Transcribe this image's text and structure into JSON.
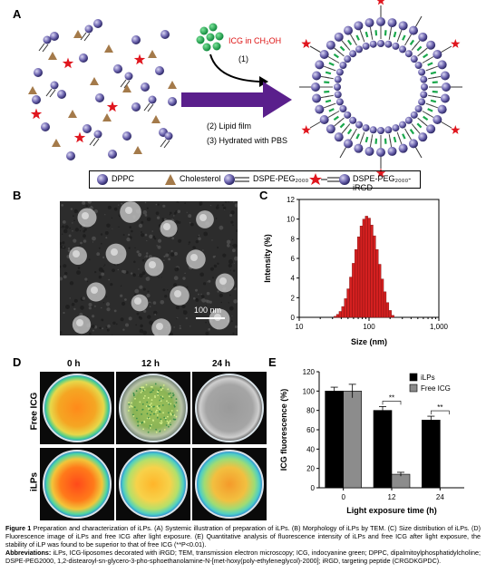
{
  "panels": {
    "a": "A",
    "b": "B",
    "c": "C",
    "d": "D",
    "e": "E"
  },
  "scheme": {
    "icg_label": "ICG in CH₃OH",
    "step1": "(1)",
    "step2": "(2) Lipid film",
    "step3": "(3) Hydrated with PBS",
    "legend": {
      "dppc": "DPPC",
      "cholesterol": "Cholesterol",
      "dspe_peg": "DSPE-PEG₂₀₀₀",
      "dspe_peg_irgd": "DSPE-PEG₂₀₀₀-iRGD"
    }
  },
  "tem": {
    "scale_bar": "100 nm"
  },
  "chart_c": {
    "type": "bar",
    "xlabel": "Size (nm)",
    "ylabel": "Intensity (%)",
    "xscale": "log",
    "xlim": [
      10,
      1000
    ],
    "ylim": [
      0,
      12
    ],
    "xticks": [
      "10",
      "100",
      "1,000"
    ],
    "yticks": [
      "0",
      "2",
      "4",
      "6",
      "8",
      "10",
      "12"
    ]
  },
  "fluorescence": {
    "times": [
      "0 h",
      "12 h",
      "24 h"
    ],
    "rows": [
      "Free ICG",
      "iLPs"
    ]
  },
  "chart_data": [
    {
      "type": "bar",
      "xlabel": "Size (nm)",
      "ylabel": "Intensity (%)",
      "xscale": "log",
      "xlim": [
        10,
        1000
      ],
      "ylim": [
        0,
        12
      ],
      "bar_color": "#d42020",
      "x": [
        32.7,
        35.6,
        38.8,
        42.3,
        46.1,
        50.3,
        54.8,
        59.8,
        65.2,
        71.1,
        77.5,
        84.5,
        92.1,
        100.4,
        109.5,
        119.4,
        130.2,
        142.0,
        154.8,
        168.8,
        184.1,
        200.7,
        218.9
      ],
      "values": [
        0.1,
        0.3,
        0.6,
        1.1,
        1.9,
        2.9,
        4.1,
        5.5,
        6.9,
        8.2,
        9.3,
        10.0,
        10.3,
        10.1,
        9.4,
        8.3,
        6.9,
        5.4,
        3.9,
        2.6,
        1.5,
        0.7,
        0.2
      ]
    },
    {
      "type": "bar",
      "title": "",
      "xlabel": "Light exposure time (h)",
      "ylabel": "ICG fluorescence (%)",
      "ylim": [
        0,
        120
      ],
      "yticks": [
        "0",
        "20",
        "40",
        "60",
        "80",
        "100",
        "120"
      ],
      "categories": [
        "0",
        "12",
        "24"
      ],
      "legend_position": "top-right",
      "series": [
        {
          "name": "iLPs",
          "color": "#000000",
          "values": [
            100,
            80,
            70
          ],
          "errors": [
            4,
            4,
            4
          ]
        },
        {
          "name": "Free ICG",
          "color": "#8c8c8c",
          "values": [
            100,
            14,
            0
          ],
          "errors": [
            7,
            2,
            0
          ]
        }
      ],
      "annotations": [
        "**",
        "**"
      ]
    }
  ],
  "caption": {
    "figure_label": "Figure 1",
    "text": " Preparation and characterization of iLPs. (A) Systemic illustration of preparation of iLPs. (B) Morphology of iLPs by TEM. (C) Size distribution of iLPs. (D) Fluorescence image of iLPs and free ICG after light exposure. (E) Quantitative analysis of fluorescence intensity of iLPs and free ICG after light exposure, the stability of iLP was found to be superior to that of free ICG (**P<0.01).",
    "abbrev_label": "Abbreviations:",
    "abbrev_text": " iLPs, ICG-liposomes decorated with iRGD; TEM, transmission electron microscopy; ICG, indocyanine green; DPPC, dipalmitoylphosphatidylcholine; DSPE-PEG2000, 1,2-distearoyl-sn-glycero-3-pho-sphoethanolamine-N-[met-hoxy(poly-ethyleneglycol)-2000]; iRGD, targeting peptide (CRGDKGPDC)."
  }
}
